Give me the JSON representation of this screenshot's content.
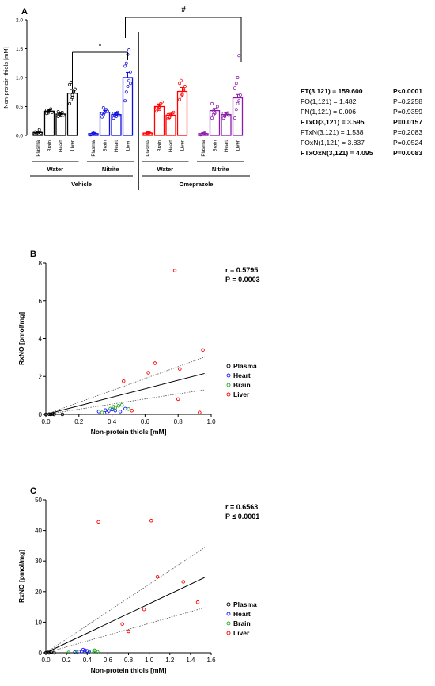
{
  "panels": {
    "A": {
      "label": "A",
      "ylabel": "Non-protein thiols [mM]",
      "yticks": [
        "0.0",
        "0.5",
        "1.0",
        "1.5",
        "2.0"
      ],
      "ylim": [
        0,
        2
      ],
      "tissues": [
        "Plasma",
        "Brain",
        "Heart",
        "Liver"
      ],
      "groups": [
        {
          "label": "Water",
          "color": "#000000",
          "means": [
            0.05,
            0.42,
            0.37,
            0.73
          ],
          "points": [
            [
              0.02,
              0.03,
              0.05,
              0.1,
              0.04,
              0.06,
              0.03
            ],
            [
              0.38,
              0.41,
              0.43,
              0.46,
              0.4,
              0.44,
              0.39,
              0.42
            ],
            [
              0.33,
              0.36,
              0.38,
              0.4,
              0.35,
              0.41,
              0.37,
              0.34
            ],
            [
              0.55,
              0.62,
              0.7,
              0.75,
              0.8,
              0.88,
              0.92,
              0.66,
              0.77
            ]
          ]
        },
        {
          "label": "Nitrite",
          "color": "#1010e0",
          "means": [
            0.03,
            0.4,
            0.36,
            1.0
          ],
          "points": [
            [
              0.01,
              0.02,
              0.04,
              0.03,
              0.02
            ],
            [
              0.32,
              0.36,
              0.4,
              0.45,
              0.42,
              0.38,
              0.48
            ],
            [
              0.3,
              0.34,
              0.37,
              0.4,
              0.35,
              0.38,
              0.36,
              0.33
            ],
            [
              0.6,
              0.75,
              0.85,
              0.95,
              1.1,
              1.2,
              1.25,
              1.4,
              1.48,
              0.9
            ]
          ]
        },
        {
          "label": "Water",
          "color": "#ff0000",
          "means": [
            0.04,
            0.5,
            0.35,
            0.76
          ],
          "points": [
            [
              0.02,
              0.03,
              0.04,
              0.05,
              0.03
            ],
            [
              0.42,
              0.46,
              0.5,
              0.55,
              0.58,
              0.48,
              0.52,
              0.45
            ],
            [
              0.29,
              0.32,
              0.35,
              0.38,
              0.4,
              0.36,
              0.31
            ],
            [
              0.62,
              0.68,
              0.72,
              0.78,
              0.85,
              0.9,
              0.95,
              0.7,
              0.8
            ]
          ]
        },
        {
          "label": "Nitrite",
          "color": "#8b1aaa",
          "means": [
            0.03,
            0.43,
            0.36,
            0.65
          ],
          "points": [
            [
              0.01,
              0.02,
              0.03,
              0.04,
              0.02
            ],
            [
              0.3,
              0.36,
              0.4,
              0.45,
              0.5,
              0.55,
              0.42,
              0.38
            ],
            [
              0.3,
              0.33,
              0.36,
              0.39,
              0.35,
              0.38,
              0.34
            ],
            [
              0.3,
              0.45,
              0.55,
              0.6,
              0.7,
              0.82,
              0.9,
              1.0,
              1.38
            ]
          ]
        }
      ],
      "treatments": [
        "Vehicle",
        "Omeprazole"
      ],
      "sig_star": "*",
      "sig_hash": "#",
      "stats": [
        {
          "k": "FT(3,121) = 159.600",
          "p": "P<0.0001",
          "bold": true
        },
        {
          "k": "FO(1,121) = 1.482",
          "p": "P=0.2258",
          "bold": false
        },
        {
          "k": "FN(1,121) = 0.006",
          "p": "P=0.9359",
          "bold": false
        },
        {
          "k": "FTxO(3,121) = 3.595",
          "p": "P=0.0157",
          "bold": true
        },
        {
          "k": "FTxN(3,121) = 1.538",
          "p": "P=0.2083",
          "bold": false
        },
        {
          "k": "FOxN(1,121) = 3.837",
          "p": "P=0.0524",
          "bold": false
        },
        {
          "k": "FTxOxN(3,121) = 4.095",
          "p": "P=0.0083",
          "bold": true
        }
      ]
    },
    "B": {
      "label": "B",
      "ylabel": "RxNO [pmol/mg]",
      "xlabel": "Non-protein thiols [mM]",
      "xticks": [
        "0.0",
        "0.2",
        "0.4",
        "0.6",
        "0.8",
        "1.0"
      ],
      "yticks": [
        "0",
        "2",
        "4",
        "6",
        "8"
      ],
      "r": "r = 0.5795",
      "p": "P = 0.0003",
      "legend": [
        "Plasma",
        "Heart",
        "Brain",
        "Liver"
      ]
    },
    "C": {
      "label": "C",
      "ylabel": "RxNO [pmol/mg]",
      "xlabel": "Non-protein thiols [mM]",
      "xticks": [
        "0.0",
        "0.2",
        "0.4",
        "0.6",
        "0.8",
        "1.0",
        "1.2",
        "1.4",
        "1.6"
      ],
      "yticks": [
        "0",
        "10",
        "20",
        "30",
        "40",
        "50"
      ],
      "r": "r = 0.6563",
      "p": "P ≤ 0.0001",
      "legend": [
        "Plasma",
        "Heart",
        "Brain",
        "Liver"
      ]
    }
  },
  "colors": {
    "plasma": "#000000",
    "heart": "#1a1aff",
    "brain": "#22aa22",
    "liver": "#ff0000",
    "water": "#000000",
    "nitrite": "#1010e0",
    "ome_water": "#ff0000",
    "ome_nitrite": "#8b1aaa"
  },
  "chart_data": [
    {
      "type": "bar",
      "title": "",
      "ylabel": "Non-protein thiols [mM]",
      "ylim": [
        0,
        2
      ],
      "categories": [
        "Plasma",
        "Brain",
        "Heart",
        "Liver"
      ],
      "series": [
        {
          "name": "Vehicle Water",
          "values": [
            0.05,
            0.42,
            0.37,
            0.73
          ]
        },
        {
          "name": "Vehicle Nitrite",
          "values": [
            0.03,
            0.4,
            0.36,
            1.0
          ]
        },
        {
          "name": "Omeprazole Water",
          "values": [
            0.04,
            0.5,
            0.35,
            0.76
          ]
        },
        {
          "name": "Omeprazole Nitrite",
          "values": [
            0.03,
            0.43,
            0.36,
            0.65
          ]
        }
      ]
    },
    {
      "type": "scatter",
      "xlabel": "Non-protein thiols [mM]",
      "ylabel": "RxNO [pmol/mg]",
      "xlim": [
        0,
        1
      ],
      "ylim": [
        0,
        8
      ],
      "fit": {
        "slope": 2.25,
        "intercept": 0.0
      },
      "series": [
        {
          "name": "Plasma",
          "points": [
            [
              0.0,
              0.0
            ],
            [
              0.02,
              0.01
            ],
            [
              0.03,
              0.0
            ],
            [
              0.04,
              0.02
            ],
            [
              0.05,
              0.0
            ],
            [
              0.1,
              0.0
            ]
          ]
        },
        {
          "name": "Heart",
          "points": [
            [
              0.32,
              0.15
            ],
            [
              0.36,
              0.22
            ],
            [
              0.38,
              0.18
            ],
            [
              0.4,
              0.25
            ],
            [
              0.42,
              0.2
            ],
            [
              0.37,
              0.1
            ],
            [
              0.45,
              0.15
            ],
            [
              0.48,
              0.3
            ]
          ]
        },
        {
          "name": "Brain",
          "points": [
            [
              0.34,
              0.1
            ],
            [
              0.39,
              0.3
            ],
            [
              0.41,
              0.4
            ],
            [
              0.44,
              0.45
            ],
            [
              0.46,
              0.5
            ],
            [
              0.42,
              0.35
            ],
            [
              0.5,
              0.28
            ]
          ]
        },
        {
          "name": "Liver",
          "points": [
            [
              0.47,
              1.75
            ],
            [
              0.52,
              0.2
            ],
            [
              0.62,
              2.2
            ],
            [
              0.66,
              2.7
            ],
            [
              0.78,
              7.6
            ],
            [
              0.81,
              2.4
            ],
            [
              0.8,
              0.8
            ],
            [
              0.93,
              0.1
            ],
            [
              0.95,
              3.4
            ]
          ]
        }
      ]
    },
    {
      "type": "scatter",
      "xlabel": "Non-protein thiols [mM]",
      "ylabel": "RxNO [pmol/mg]",
      "xlim": [
        0,
        1.6
      ],
      "ylim": [
        0,
        50
      ],
      "fit": {
        "slope": 16.0,
        "intercept": 0.0
      },
      "series": [
        {
          "name": "Plasma",
          "points": [
            [
              0.0,
              0.0
            ],
            [
              0.02,
              0.1
            ],
            [
              0.03,
              0.0
            ],
            [
              0.05,
              0.2
            ],
            [
              0.08,
              0.0
            ]
          ]
        },
        {
          "name": "Heart",
          "points": [
            [
              0.28,
              0.2
            ],
            [
              0.32,
              0.4
            ],
            [
              0.35,
              0.5
            ],
            [
              0.38,
              0.8
            ],
            [
              0.4,
              0.6
            ],
            [
              0.42,
              0.3
            ],
            [
              0.36,
              1.0
            ]
          ]
        },
        {
          "name": "Brain",
          "points": [
            [
              0.22,
              0.1
            ],
            [
              0.3,
              0.2
            ],
            [
              0.44,
              0.5
            ],
            [
              0.47,
              0.8
            ],
            [
              0.5,
              0.3
            ],
            [
              0.48,
              0.6
            ]
          ]
        },
        {
          "name": "Liver",
          "points": [
            [
              0.51,
              42.8
            ],
            [
              0.74,
              9.4
            ],
            [
              0.8,
              7.0
            ],
            [
              0.95,
              14.2
            ],
            [
              1.02,
              43.2
            ],
            [
              1.08,
              24.8
            ],
            [
              1.33,
              23.2
            ],
            [
              1.47,
              16.5
            ]
          ]
        }
      ]
    }
  ]
}
